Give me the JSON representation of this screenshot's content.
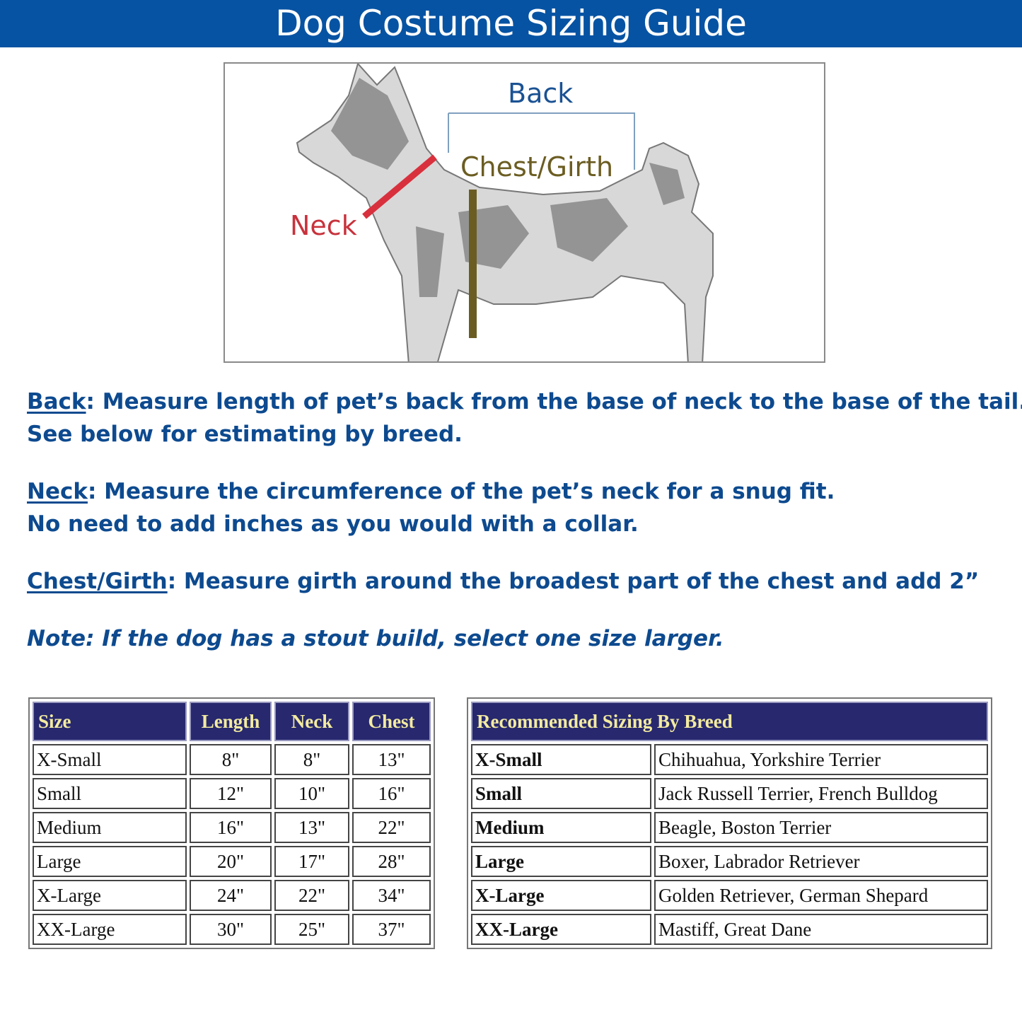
{
  "header": {
    "title": "Dog Costume Sizing Guide"
  },
  "figure": {
    "labels": {
      "back": "Back",
      "chest": "Chest/Girth",
      "neck": "Neck"
    },
    "colors": {
      "back": "#1a5293",
      "chest": "#6b5d22",
      "neck": "#c8323c"
    }
  },
  "instructions": {
    "back": {
      "term": "Back",
      "text1": ": Measure length of pet’s back from the base of neck to the base of the tail.",
      "text2": "See below for estimating by breed."
    },
    "neck": {
      "term": "Neck",
      "text1": ": Measure the circumference of the pet’s neck for a snug fit.",
      "text2": "No need to add inches as you would with a collar."
    },
    "chest": {
      "term": "Chest/Girth",
      "text1": ": Measure girth around the broadest part of the chest and add 2”"
    },
    "note": "Note: If the dog has a stout build, select one size larger."
  },
  "size_table": {
    "headers": [
      "Size",
      "Length",
      "Neck",
      "Chest"
    ],
    "rows": [
      [
        "X-Small",
        "8\"",
        "8\"",
        "13\""
      ],
      [
        "Small",
        "12\"",
        "10\"",
        "16\""
      ],
      [
        "Medium",
        "16\"",
        "13\"",
        "22\""
      ],
      [
        "Large",
        "20\"",
        "17\"",
        "28\""
      ],
      [
        "X-Large",
        "24\"",
        "22\"",
        "34\""
      ],
      [
        "XX-Large",
        "30\"",
        "25\"",
        "37\""
      ]
    ]
  },
  "breed_table": {
    "header": "Recommended Sizing By Breed",
    "rows": [
      [
        "X-Small",
        "Chihuahua, Yorkshire Terrier"
      ],
      [
        "Small",
        "Jack Russell Terrier, French Bulldog"
      ],
      [
        "Medium",
        "Beagle, Boston Terrier"
      ],
      [
        "Large",
        "Boxer, Labrador Retriever"
      ],
      [
        "X-Large",
        "Golden Retriever, German Shepard"
      ],
      [
        "XX-Large",
        "Mastiff, Great Dane"
      ]
    ]
  }
}
